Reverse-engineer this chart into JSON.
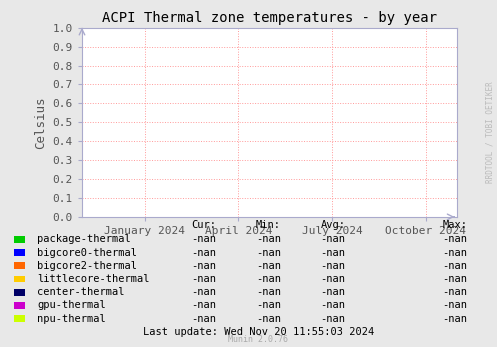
{
  "title": "ACPI Thermal zone temperatures - by year",
  "ylabel": "Celsius",
  "ylim": [
    0.0,
    1.0
  ],
  "yticks": [
    0.0,
    0.1,
    0.2,
    0.3,
    0.4,
    0.5,
    0.6,
    0.7,
    0.8,
    0.9,
    1.0
  ],
  "xtick_labels": [
    "January 2024",
    "April 2024",
    "July 2024",
    "October 2024"
  ],
  "xtick_positions": [
    0.1667,
    0.4167,
    0.6667,
    0.9167
  ],
  "background_color": "#e8e8e8",
  "plot_bg_color": "#ffffff",
  "grid_color": "#ff9999",
  "title_color": "#000000",
  "watermark": "RRDTOOL / TOBI OETIKER",
  "munin_version": "Munin 2.0.76",
  "last_update": "Last update: Wed Nov 20 11:55:03 2024",
  "legend_entries": [
    {
      "label": "package-thermal",
      "color": "#00cc00"
    },
    {
      "label": "bigcore0-thermal",
      "color": "#0000ff"
    },
    {
      "label": "bigcore2-thermal",
      "color": "#ff6600"
    },
    {
      "label": "littlecore-thermal",
      "color": "#ffcc00"
    },
    {
      "label": "center-thermal",
      "color": "#000066"
    },
    {
      "label": "gpu-thermal",
      "color": "#cc00cc"
    },
    {
      "label": "npu-thermal",
      "color": "#ccff00"
    }
  ],
  "table_header": [
    "Cur:",
    "Min:",
    "Avg:",
    "Max:"
  ],
  "table_values": "-nan",
  "arrow_color": "#aaaacc",
  "axis_color": "#aaaacc",
  "tick_color": "#555555",
  "font_size_title": 10,
  "font_size_tick": 8,
  "font_size_legend": 7.5,
  "font_size_watermark": 5.5,
  "font_size_munin": 6
}
